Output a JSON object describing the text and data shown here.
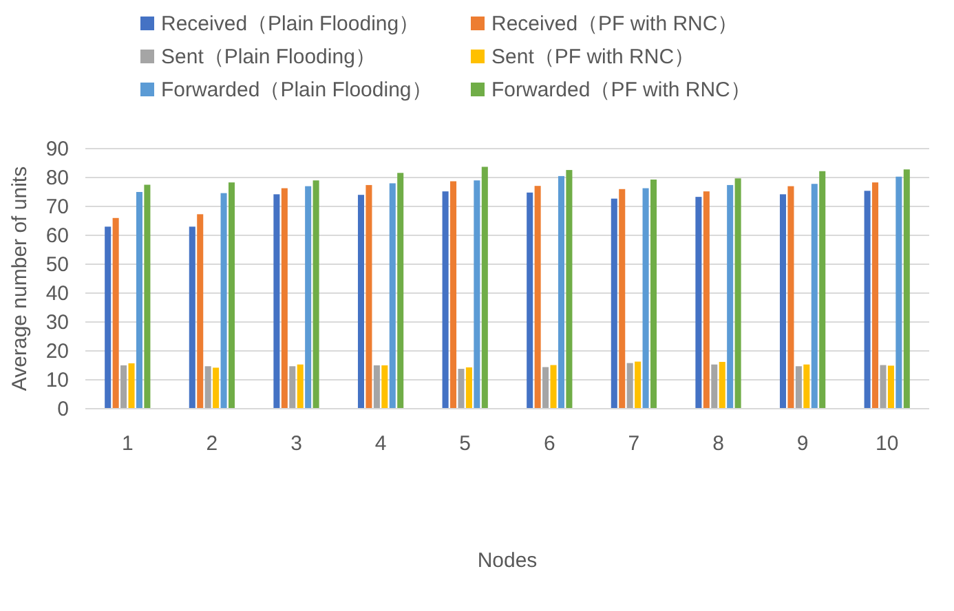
{
  "chart_data": {
    "type": "bar",
    "xlabel": "Nodes",
    "ylabel": "Average number of units",
    "categories": [
      "1",
      "2",
      "3",
      "4",
      "5",
      "6",
      "7",
      "8",
      "9",
      "10"
    ],
    "series": [
      {
        "name": "Received（Plain Flooding）",
        "color": "#4472c4",
        "values": [
          63,
          63,
          74.2,
          74,
          75.2,
          74.8,
          72.7,
          73.3,
          74.2,
          75.4
        ]
      },
      {
        "name": "Received（PF with RNC）",
        "color": "#ed7d31",
        "values": [
          66,
          67.3,
          76.3,
          77.4,
          78.7,
          77.1,
          76,
          75.2,
          77,
          78.3
        ]
      },
      {
        "name": "Sent（Plain Flooding）",
        "color": "#a5a5a5",
        "values": [
          15,
          14.7,
          14.7,
          15,
          13.8,
          14.4,
          15.8,
          15.3,
          14.7,
          15.1
        ]
      },
      {
        "name": "Sent（PF with RNC）",
        "color": "#ffc000",
        "values": [
          15.7,
          14.2,
          15.3,
          15,
          14.3,
          15.1,
          16.3,
          16.2,
          15.3,
          14.9
        ]
      },
      {
        "name": "Forwarded（Plain Flooding）",
        "color": "#5b9bd5",
        "values": [
          75,
          74.6,
          77,
          78,
          79,
          80.5,
          76.3,
          77.4,
          77.8,
          80.3
        ]
      },
      {
        "name": "Forwarded（PF with RNC）",
        "color": "#70ad47",
        "values": [
          77.5,
          78.3,
          79,
          81.6,
          83.7,
          82.6,
          79.3,
          79.7,
          82.2,
          82.8
        ]
      }
    ],
    "ylim": [
      0,
      90
    ],
    "yticks": [
      0,
      10,
      20,
      30,
      40,
      50,
      60,
      70,
      80,
      90
    ],
    "grid": "y",
    "legend": "top"
  }
}
